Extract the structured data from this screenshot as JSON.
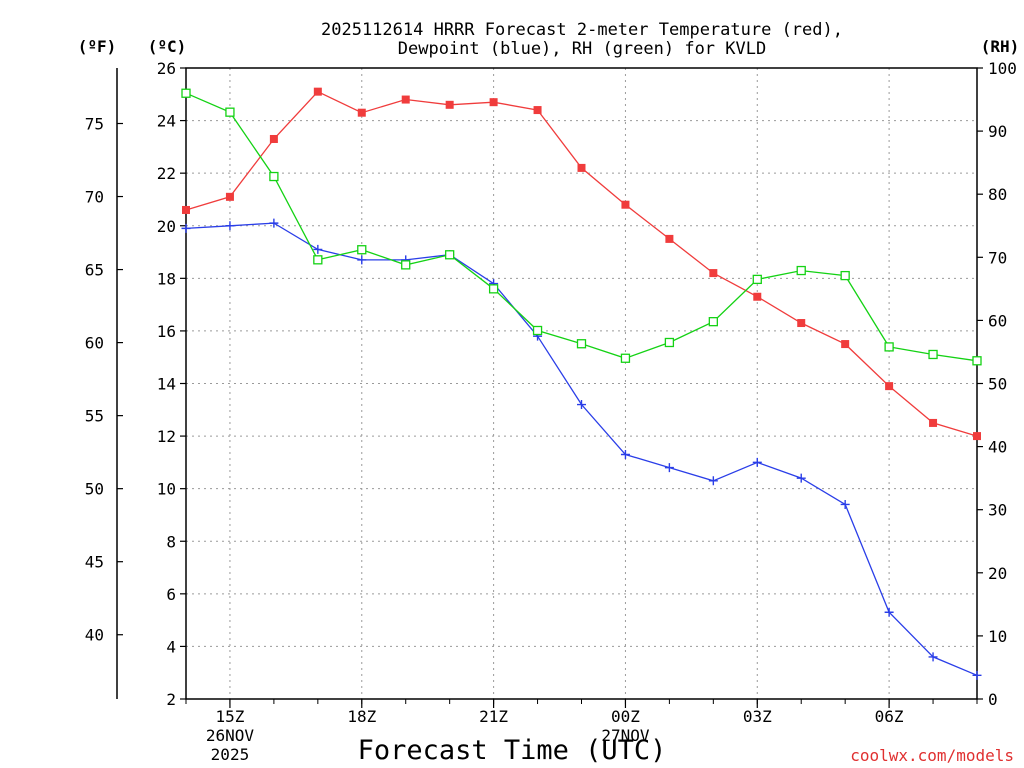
{
  "chart_data": {
    "type": "line",
    "title_line1": "2025112614 HRRR Forecast 2-meter Temperature (red),",
    "title_line2": "Dewpoint (blue), RH (green) for KVLD",
    "left_outer_unit": "(ºF)",
    "left_inner_unit": "(ºC)",
    "right_unit": "(RH)",
    "xlabel": "Forecast Time (UTC)",
    "credit": "coolwx.com/models",
    "x_hours": [
      14,
      15,
      16,
      17,
      18,
      19,
      20,
      21,
      22,
      23,
      24,
      25,
      26,
      27,
      28,
      29,
      30,
      31,
      32
    ],
    "x_ticks": [
      {
        "hour": 15,
        "lines": [
          "15Z",
          "26NOV",
          "2025"
        ]
      },
      {
        "hour": 18,
        "lines": [
          "18Z"
        ]
      },
      {
        "hour": 21,
        "lines": [
          "21Z"
        ]
      },
      {
        "hour": 24,
        "lines": [
          "00Z",
          "27NOV"
        ]
      },
      {
        "hour": 27,
        "lines": [
          "03Z"
        ]
      },
      {
        "hour": 30,
        "lines": [
          "06Z"
        ]
      }
    ],
    "xlim": [
      14,
      32
    ],
    "celsius_axis": {
      "ylim": [
        2,
        26
      ],
      "ticks": [
        2,
        4,
        6,
        8,
        10,
        12,
        14,
        16,
        18,
        20,
        22,
        24,
        26
      ]
    },
    "fahrenheit_axis": {
      "ticks": [
        40,
        45,
        50,
        55,
        60,
        65,
        70,
        75
      ]
    },
    "rh_axis": {
      "ylim": [
        0,
        100
      ],
      "ticks": [
        0,
        10,
        20,
        30,
        40,
        50,
        60,
        70,
        80,
        90,
        100
      ]
    },
    "series": [
      {
        "name": "Temperature",
        "units": "C",
        "color": "#f03c3c",
        "marker": "filled-square",
        "values": [
          20.6,
          21.1,
          23.3,
          25.1,
          24.3,
          24.8,
          24.6,
          24.7,
          24.4,
          22.2,
          20.8,
          19.5,
          18.2,
          17.3,
          16.3,
          15.5,
          13.9,
          12.5,
          12.0
        ]
      },
      {
        "name": "Dewpoint",
        "units": "C",
        "color": "#2a3ee8",
        "marker": "plus",
        "values": [
          19.9,
          20.0,
          20.1,
          19.1,
          18.7,
          18.7,
          18.9,
          17.8,
          15.8,
          13.2,
          11.3,
          10.8,
          10.3,
          11.0,
          10.4,
          9.4,
          5.3,
          3.6,
          2.9
        ]
      },
      {
        "name": "RH",
        "units": "%",
        "color": "#14d214",
        "marker": "open-square",
        "values": [
          96.0,
          93.0,
          82.8,
          69.6,
          71.2,
          68.8,
          70.4,
          65.0,
          58.4,
          56.3,
          54.0,
          56.5,
          59.8,
          66.5,
          67.9,
          67.1,
          55.8,
          54.6,
          53.6
        ]
      }
    ],
    "grid": true
  }
}
